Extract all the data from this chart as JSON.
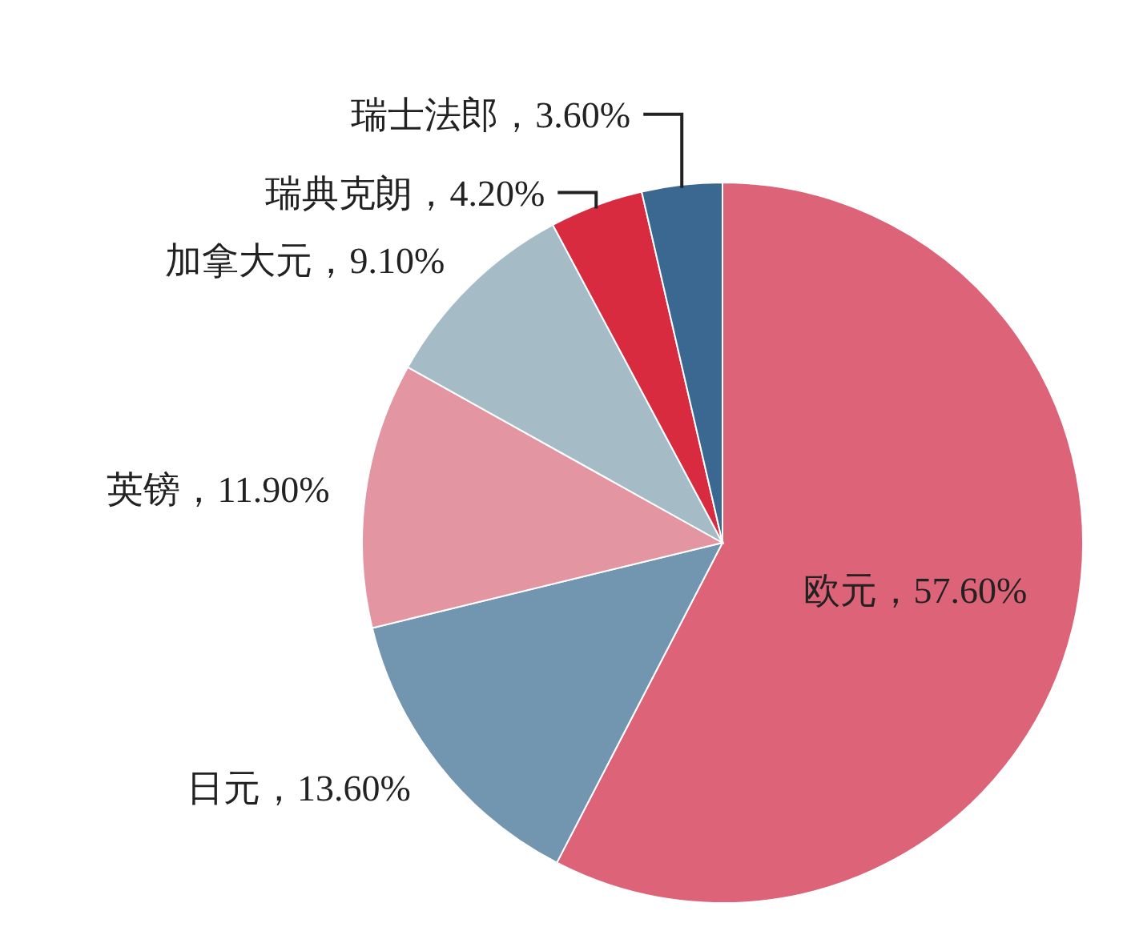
{
  "chart_data": {
    "type": "pie",
    "categories": [
      "欧元",
      "日元",
      "英镑",
      "加拿大元",
      "瑞典克朗",
      "瑞士法郎"
    ],
    "values": [
      57.6,
      13.6,
      11.9,
      9.1,
      4.2,
      3.6
    ],
    "value_labels": [
      "，57.60%",
      "，13.60%",
      "，11.90%",
      "，9.10%",
      "，4.20%",
      "，3.60%"
    ],
    "colors": [
      "#dc6378",
      "#7295b0",
      "#e495a2",
      "#a5bcc7",
      "#d92b3f",
      "#3a6890"
    ]
  }
}
